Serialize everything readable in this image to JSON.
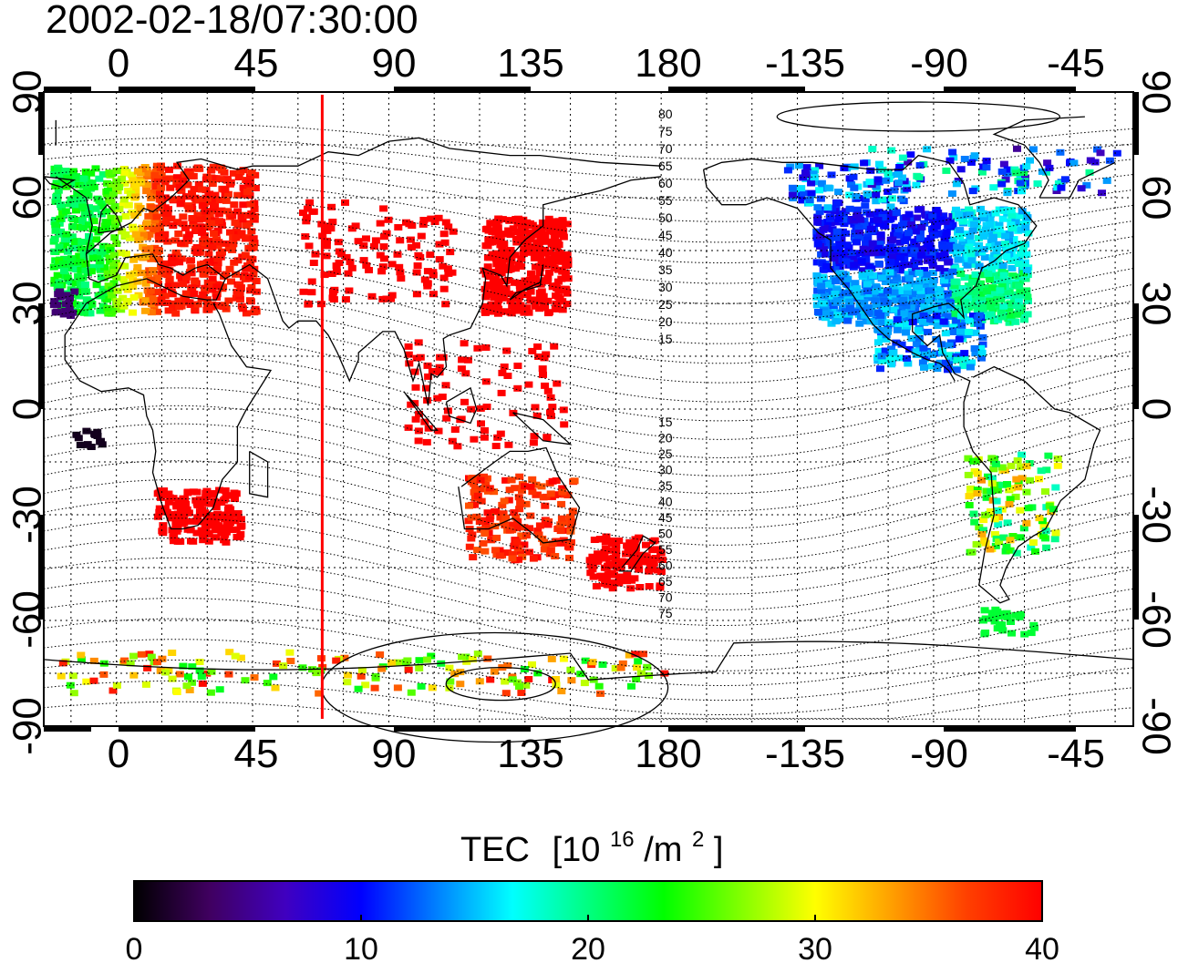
{
  "title": "2002-02-18/07:30:00",
  "map": {
    "type": "heatmap",
    "lon_ticks_top": [
      "0",
      "45",
      "90",
      "135",
      "180",
      "-135",
      "-90",
      "-45"
    ],
    "lon_ticks_bottom": [
      "0",
      "45",
      "90",
      "135",
      "180",
      "-135",
      "-90",
      "-45"
    ],
    "lat_ticks_left": [
      "90",
      "60",
      "30",
      "0",
      "-30",
      "-60",
      "-90"
    ],
    "lat_ticks_right": [
      "90",
      "60",
      "30",
      "0",
      "-30",
      "-60",
      "-90"
    ],
    "contour_labels_north": [
      "80",
      "75",
      "70",
      "65",
      "60",
      "55",
      "50",
      "45",
      "40",
      "35",
      "30",
      "25",
      "20",
      "15"
    ],
    "contour_labels_south": [
      "15",
      "20",
      "25",
      "30",
      "35",
      "40",
      "45",
      "50",
      "55",
      "60",
      "65",
      "70",
      "75"
    ],
    "meridian_marker_lon": 68,
    "grid": true
  },
  "colorbar": {
    "title": "TEC",
    "unit_prefix": "[10",
    "unit_exp1": "16",
    "unit_mid": "/m",
    "unit_exp2": "2",
    "unit_suffix": "]",
    "ticks": [
      "0",
      "10",
      "20",
      "30",
      "40"
    ],
    "range": [
      0,
      40
    ]
  },
  "colors": {
    "marker": "#ff0000",
    "scale": [
      "#000000",
      "#400060",
      "#4000c0",
      "#0000ff",
      "#0080ff",
      "#00ffff",
      "#00ff80",
      "#00ff00",
      "#80ff00",
      "#ffff00",
      "#ffa000",
      "#ff4000",
      "#ff0000"
    ]
  },
  "chart_data": {
    "type": "heatmap",
    "title": "2002-02-18/07:30:00",
    "xlabel": "",
    "ylabel": "",
    "xlim": [
      -24,
      336
    ],
    "ylim": [
      -90,
      90
    ],
    "value_label": "TEC [10^16/m^2]",
    "value_range": [
      0,
      40
    ],
    "regions": [
      {
        "name": "",
        "lon": [
          -22,
          60
        ],
        "lat": [
          25,
          70
        ],
        "value": 38
      },
      {
        "name": "",
        "lon": [
          -20,
          20
        ],
        "lat": [
          35,
          68
        ],
        "value": 20
      },
      {
        "name": "",
        "lon": [
          120,
          150
        ],
        "lat": [
          25,
          55
        ],
        "value": 40
      },
      {
        "name": "",
        "lon": [
          -130,
          -60
        ],
        "lat": [
          25,
          55
        ],
        "value": 10
      },
      {
        "name": "",
        "lon": [
          -110,
          -70
        ],
        "lat": [
          10,
          30
        ],
        "value": 14
      },
      {
        "name": "",
        "lon": [
          10,
          40
        ],
        "lat": [
          -35,
          -20
        ],
        "value": 40
      },
      {
        "name": "",
        "lon": [
          110,
          155
        ],
        "lat": [
          -40,
          -10
        ],
        "value": 39
      },
      {
        "name": "",
        "lon": [
          160,
          180
        ],
        "lat": [
          -50,
          -35
        ],
        "value": 40
      },
      {
        "name": "",
        "lon": [
          -75,
          -45
        ],
        "lat": [
          -35,
          -15
        ],
        "value": 25
      },
      {
        "name": "",
        "lon": [
          -20,
          180
        ],
        "lat": [
          -80,
          -68
        ],
        "value": 30
      }
    ]
  }
}
